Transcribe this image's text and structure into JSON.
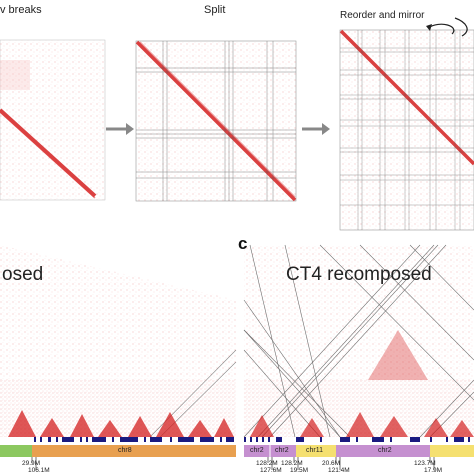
{
  "top_row": {
    "step1_label": "v breaks",
    "step2_label": "Split",
    "step3_label": "Reorder and mirror"
  },
  "bottom": {
    "panel_c_letter": "c",
    "left_title": "osed",
    "right_title": "CT4 recomposed"
  },
  "tracks": {
    "left": {
      "chr_label": "chr8",
      "coords": [
        "29.9M",
        "106.1M"
      ]
    },
    "right": {
      "segments": [
        "chr2",
        "chr2",
        "chr11",
        "chr2"
      ],
      "coords_top": [
        "128.2M",
        "128.2M",
        "20.6M",
        "123.7M"
      ],
      "coords_bottom": [
        "127.6M",
        "19.5M",
        "121.4M",
        "17.9M"
      ]
    }
  },
  "colors": {
    "heat": "#d42020",
    "chr8": "#e8a050",
    "chr2": "#c590d0",
    "chr11": "#f5e070",
    "green": "#8cc860",
    "blue_marks": "#1a1a80",
    "arrow": "#888888"
  }
}
